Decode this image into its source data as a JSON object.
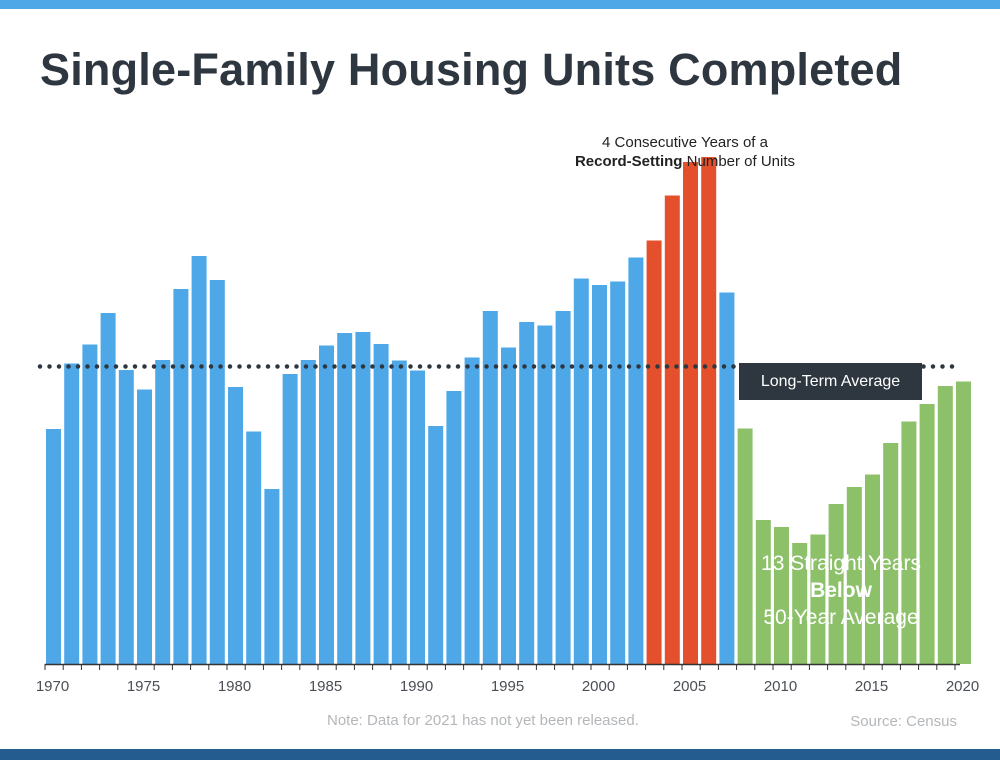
{
  "title": "Single-Family Housing Units Completed",
  "footer": {
    "note": "Note: Data for 2021 has not yet been released.",
    "source": "Source: Census"
  },
  "annotations": {
    "average_label": "Long-Term Average",
    "record": {
      "line1": "4 Consecutive Years of a",
      "bold": "Record-Setting",
      "rest": " Number of Units"
    },
    "below": {
      "line1": "13 Straight Years",
      "bold": "Below",
      "line3": "50-Year Average"
    }
  },
  "colors": {
    "top_bar": "#4ea8e8",
    "bottom_bar": "#245c8f",
    "title": "#2e3740",
    "blue": "#4ea8e8",
    "red": "#e4502b",
    "green": "#8cc16a",
    "average_line": "#2e3740",
    "axis": "#333333",
    "tick_label": "#4a4f55"
  },
  "chart_data": {
    "type": "bar",
    "title": "Single-Family Housing Units Completed",
    "xlabel": "",
    "ylabel": "",
    "ylim": [
      0,
      1000
    ],
    "grid": false,
    "legend": "none",
    "x_tick_labels": [
      "1970",
      "1975",
      "1980",
      "1985",
      "1990",
      "1995",
      "2000",
      "2005",
      "2010",
      "2015",
      "2020"
    ],
    "x": [
      1970,
      1971,
      1972,
      1973,
      1974,
      1975,
      1976,
      1977,
      1978,
      1979,
      1980,
      1981,
      1982,
      1983,
      1984,
      1985,
      1986,
      1987,
      1988,
      1989,
      1990,
      1991,
      1992,
      1993,
      1994,
      1995,
      1996,
      1997,
      1998,
      1999,
      2000,
      2001,
      2002,
      2003,
      2004,
      2005,
      2006,
      2007,
      2008,
      2009,
      2010,
      2011,
      2012,
      2013,
      2014,
      2015,
      2016,
      2017,
      2018,
      2019,
      2020
    ],
    "values": [
      470,
      601,
      639,
      702,
      588,
      549,
      608,
      750,
      816,
      768,
      554,
      465,
      350,
      580,
      608,
      637,
      662,
      664,
      640,
      607,
      587,
      476,
      546,
      613,
      706,
      633,
      684,
      677,
      706,
      771,
      758,
      765,
      813,
      847,
      937,
      1004,
      1014,
      743,
      471,
      288,
      274,
      242,
      259,
      320,
      354,
      379,
      442,
      485,
      520,
      556,
      565
    ],
    "categories_group": [
      "blue",
      "blue",
      "blue",
      "blue",
      "blue",
      "blue",
      "blue",
      "blue",
      "blue",
      "blue",
      "blue",
      "blue",
      "blue",
      "blue",
      "blue",
      "blue",
      "blue",
      "blue",
      "blue",
      "blue",
      "blue",
      "blue",
      "blue",
      "blue",
      "blue",
      "blue",
      "blue",
      "blue",
      "blue",
      "blue",
      "blue",
      "blue",
      "blue",
      "red",
      "red",
      "red",
      "red",
      "blue",
      "green",
      "green",
      "green",
      "green",
      "green",
      "green",
      "green",
      "green",
      "green",
      "green",
      "green",
      "green",
      "green"
    ],
    "average_value": 595
  }
}
